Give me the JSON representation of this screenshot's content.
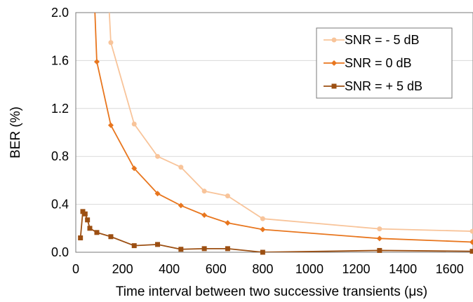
{
  "chart_data": {
    "type": "line",
    "title": "",
    "xlabel": "Time interval between two successive transients (μs)",
    "ylabel": "BER (%)",
    "xlim": [
      0,
      1700
    ],
    "ylim": [
      0,
      2.0
    ],
    "xticks": [
      0,
      200,
      400,
      600,
      800,
      1000,
      1200,
      1400,
      1600
    ],
    "xtick_labels": [
      "0",
      "200",
      "400",
      "600",
      "800",
      "1000",
      "1200",
      "1400",
      "1600"
    ],
    "yticks": [
      0,
      0.4,
      0.8,
      1.2,
      1.6,
      2.0
    ],
    "ytick_labels": [
      "0.0",
      "0.4",
      "0.8",
      "1.2",
      "1.6",
      "2.0"
    ],
    "grid": true,
    "legend_position": "top-right",
    "series": [
      {
        "name": "SNR = - 5 dB",
        "color": "#f8c49a",
        "marker": "circle",
        "x": [
          150,
          250,
          350,
          450,
          550,
          650,
          800,
          1300,
          1700
        ],
        "y": [
          1.75,
          1.07,
          0.8,
          0.71,
          0.51,
          0.47,
          0.28,
          0.195,
          0.175
        ]
      },
      {
        "name": "SNR = 0 dB",
        "color": "#e8761e",
        "marker": "diamond",
        "x": [
          90,
          150,
          250,
          350,
          450,
          550,
          650,
          800,
          1300,
          1700
        ],
        "y": [
          1.59,
          1.06,
          0.7,
          0.49,
          0.39,
          0.31,
          0.245,
          0.19,
          0.115,
          0.085
        ]
      },
      {
        "name": "SNR = + 5 dB",
        "color": "#9c4f12",
        "marker": "square",
        "x": [
          20,
          30,
          40,
          50,
          60,
          90,
          150,
          250,
          350,
          450,
          550,
          650,
          800,
          1300,
          1700
        ],
        "y": [
          0.12,
          0.34,
          0.32,
          0.27,
          0.2,
          0.165,
          0.13,
          0.055,
          0.065,
          0.025,
          0.03,
          0.03,
          0.0,
          0.015,
          0.008
        ]
      }
    ]
  }
}
